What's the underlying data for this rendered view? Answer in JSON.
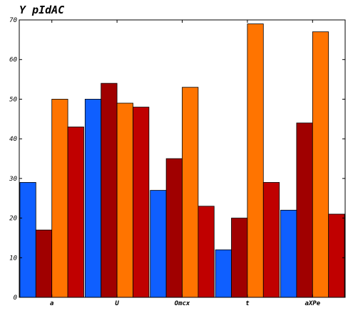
{
  "chart_data": {
    "type": "bar",
    "title": "Y pIdAC",
    "xlabel": "",
    "ylabel": "",
    "categories": [
      "a",
      "U",
      "Omcx",
      "t",
      "aXPe"
    ],
    "series": [
      {
        "values": [
          29,
          50,
          27,
          12,
          22
        ],
        "color": "#0f5fff"
      },
      {
        "values": [
          17,
          54,
          35,
          20,
          44
        ],
        "color": "#a00000"
      },
      {
        "values": [
          50,
          49,
          53,
          69,
          67
        ],
        "color": "#ff7400"
      },
      {
        "values": [
          43,
          48,
          23,
          29,
          21
        ],
        "color": "#c00000"
      }
    ],
    "ylim": [
      0,
      70
    ],
    "yticks": [
      0,
      10,
      20,
      30,
      40,
      50,
      60,
      70
    ],
    "grid": false,
    "legend": false
  }
}
